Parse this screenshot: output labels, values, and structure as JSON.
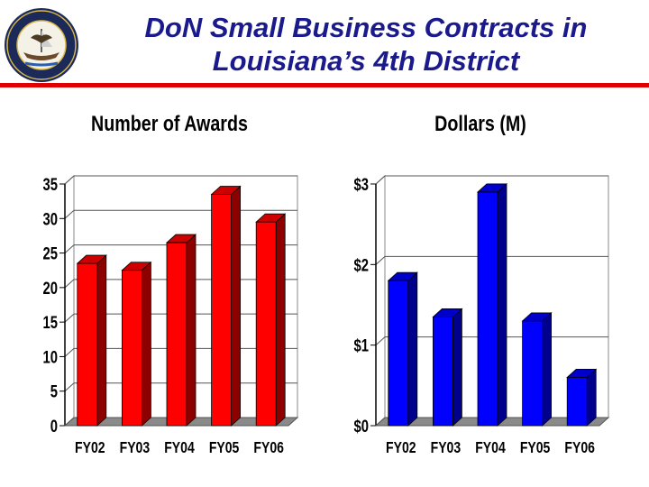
{
  "header": {
    "title_line1": "DoN Small Business Contracts in",
    "title_line2": "Louisiana’s 4th District"
  },
  "seal": {
    "ring_text": "DEPARTMENT OF THE NAVY • UNITED STATES OF AMERICA •"
  },
  "colors": {
    "title": "#1a1a8c",
    "rule": "#e00000",
    "awards_bar": "#ff0000",
    "dollars_bar": "#0000ff"
  },
  "chart_data": [
    {
      "type": "bar",
      "title": "Number of Awards",
      "categories": [
        "FY02",
        "FY03",
        "FY04",
        "FY05",
        "FY06"
      ],
      "values": [
        23.5,
        22.5,
        26.5,
        33.5,
        29.5
      ],
      "yticks": [
        "0",
        "5",
        "10",
        "15",
        "20",
        "25",
        "30",
        "35"
      ],
      "ylim": [
        0,
        35
      ],
      "grid": true,
      "color": "#ff0000"
    },
    {
      "type": "bar",
      "title": "Dollars (M)",
      "categories": [
        "FY02",
        "FY03",
        "FY04",
        "FY05",
        "FY06"
      ],
      "values": [
        1.8,
        1.35,
        2.9,
        1.3,
        0.6
      ],
      "yticks": [
        "$0",
        "$1",
        "$2",
        "$3"
      ],
      "ylim": [
        0,
        3
      ],
      "grid": true,
      "color": "#0000ff"
    }
  ]
}
